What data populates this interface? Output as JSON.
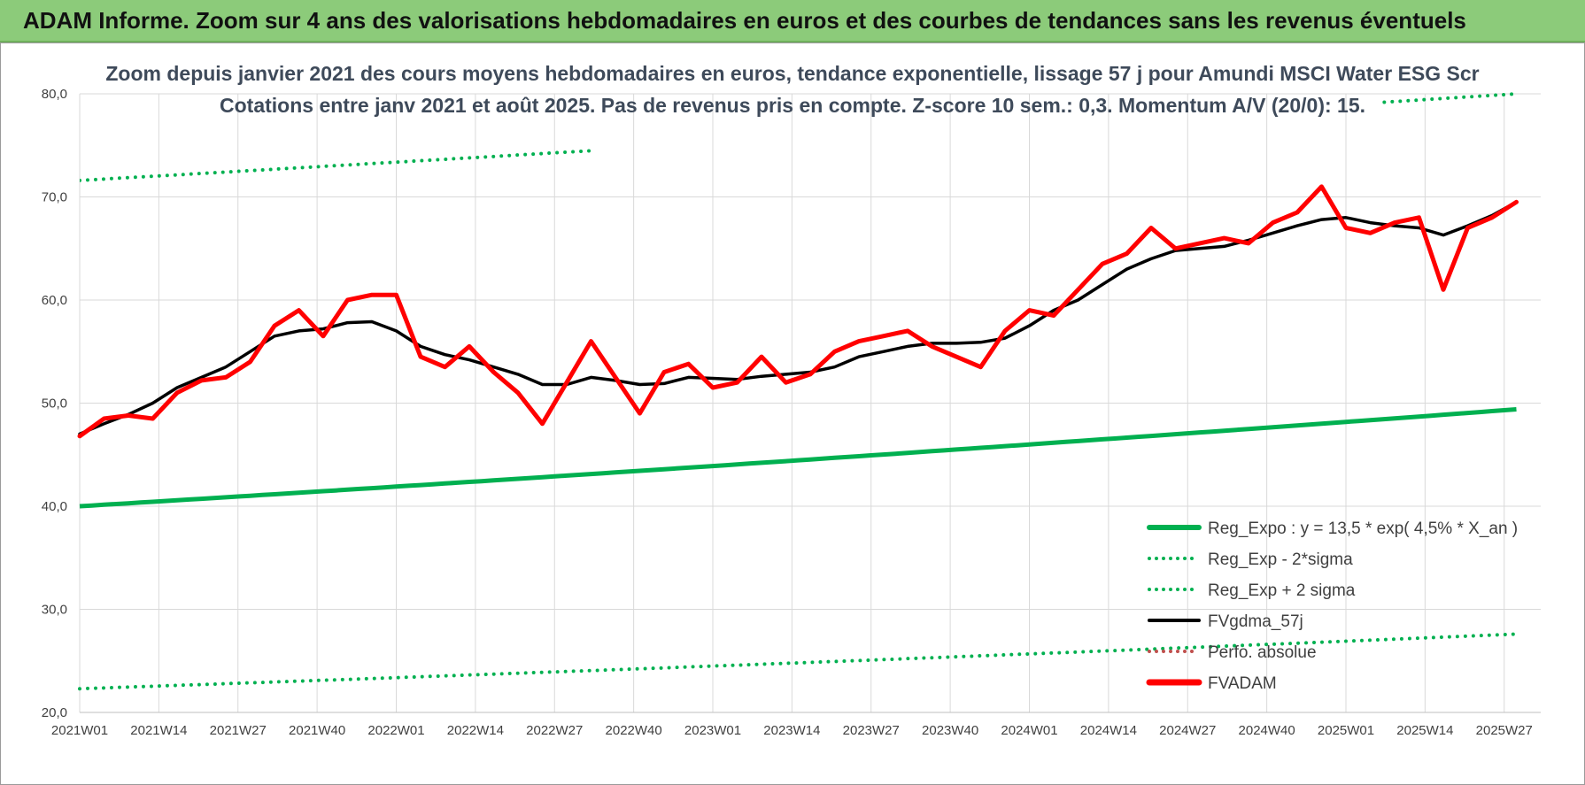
{
  "header": {
    "banner": "ADAM Informe. Zoom sur 4 ans des valorisations hebdomadaires en euros et des courbes de tendances sans les revenus éventuels"
  },
  "chart_data": {
    "type": "line",
    "title": "Zoom depuis janvier 2021 des cours moyens hebdomadaires en euros, tendance exponentielle, lissage 57 j pour Amundi MSCI Water ESG Scr",
    "subtitle": "Cotations entre janv 2021 et août 2025.  Pas de revenus pris en compte. Z-score 10 sem.: 0,3. Momentum A/V (20/0): 15.",
    "xlabel": "",
    "ylabel": "",
    "ylim": [
      20,
      80
    ],
    "y_ticks": [
      "20,0",
      "30,0",
      "40,0",
      "50,0",
      "60,0",
      "70,0",
      "80,0"
    ],
    "x_ticks": [
      "2021W01",
      "2021W14",
      "2021W27",
      "2021W40",
      "2022W01",
      "2022W14",
      "2022W27",
      "2022W40",
      "2023W01",
      "2023W14",
      "2023W27",
      "2023W40",
      "2024W01",
      "2024W14",
      "2024W27",
      "2024W40",
      "2025W01",
      "2025W14",
      "2025W27"
    ],
    "grid": true,
    "legend_position": "bottom-right",
    "colors": {
      "trend": "#00b050",
      "bands": "#00b050",
      "smooth": "#000000",
      "perf": "#c0504d",
      "price": "#ff0000"
    },
    "legend": [
      {
        "label": "Reg_Expo : y = 13,5 * exp( 4,5% *  X_an )",
        "style": "solid-green"
      },
      {
        "label": "Reg_Exp - 2*sigma",
        "style": "dotted-green"
      },
      {
        "label": "Reg_Exp + 2 sigma",
        "style": "dotted-green"
      },
      {
        "label": "FVgdma_57j",
        "style": "solid-black"
      },
      {
        "label": "Perfo. absolue",
        "style": "dotted-red"
      },
      {
        "label": "FVADAM",
        "style": "solid-red"
      }
    ],
    "x_weeks": [
      0,
      4,
      8,
      12,
      16,
      20,
      24,
      28,
      32,
      36,
      40,
      44,
      48,
      52,
      56,
      60,
      64,
      68,
      72,
      76,
      80,
      84,
      88,
      92,
      96,
      100,
      104,
      108,
      112,
      116,
      120,
      124,
      128,
      132,
      136,
      140,
      144,
      148,
      152,
      156,
      160,
      164,
      168,
      172,
      176,
      180,
      184,
      188,
      192,
      196,
      200,
      204,
      208,
      212,
      216,
      220,
      224,
      228,
      232,
      236
    ],
    "series": [
      {
        "name": "Reg_Expo : y = 13,5 * exp( 4,5% *  X_an )",
        "key": "trend",
        "start": 40.0,
        "end": 49.4
      },
      {
        "name": "Reg_Exp - 2*sigma",
        "key": "lower",
        "start": 22.3,
        "end": 27.6
      },
      {
        "name": "Reg_Exp + 2 sigma",
        "key": "upper",
        "start": 71.6,
        "end": 80.0
      },
      {
        "name": "FVgdma_57j",
        "key": "smooth",
        "values": [
          47.0,
          48.0,
          48.9,
          50.0,
          51.5,
          52.5,
          53.5,
          55.0,
          56.5,
          57.0,
          57.2,
          57.8,
          57.9,
          57.0,
          55.5,
          54.7,
          54.2,
          53.5,
          52.8,
          51.8,
          51.8,
          52.5,
          52.2,
          51.8,
          51.9,
          52.5,
          52.4,
          52.3,
          52.6,
          52.8,
          53.0,
          53.5,
          54.5,
          55.0,
          55.5,
          55.8,
          55.8,
          55.9,
          56.3,
          57.5,
          59.0,
          60.0,
          61.5,
          63.0,
          64.0,
          64.8,
          65.0,
          65.2,
          65.8,
          66.5,
          67.2,
          67.8,
          68.0,
          67.5,
          67.2,
          67.0,
          66.3,
          67.2,
          68.2,
          69.5
        ]
      },
      {
        "name": "FVADAM",
        "key": "price",
        "values": [
          46.8,
          48.5,
          48.8,
          48.5,
          51.0,
          52.2,
          52.5,
          54.0,
          57.5,
          59.0,
          56.5,
          60.0,
          60.5,
          60.5,
          54.5,
          53.5,
          55.5,
          53.0,
          51.0,
          48.0,
          52.0,
          56.0,
          52.5,
          49.0,
          53.0,
          53.8,
          51.5,
          52.0,
          54.5,
          52.0,
          52.8,
          55.0,
          56.0,
          56.5,
          57.0,
          55.5,
          54.5,
          53.5,
          57.0,
          59.0,
          58.5,
          61.0,
          63.5,
          64.5,
          67.0,
          65.0,
          65.5,
          66.0,
          65.5,
          67.5,
          68.5,
          71.0,
          67.0,
          66.5,
          67.5,
          68.0,
          61.0,
          67.0,
          68.0,
          69.5
        ]
      }
    ]
  }
}
